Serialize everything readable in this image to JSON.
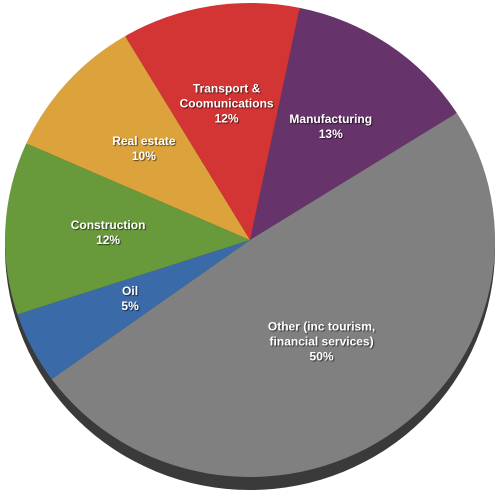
{
  "chart_data": {
    "type": "pie",
    "categories": [
      "Manufacturing",
      "Other (inc tourism, financial services)",
      "Oil",
      "Construction",
      "Real estate",
      "Transport & Coomunications"
    ],
    "values": [
      13,
      50,
      5,
      12,
      10,
      12
    ],
    "value_labels": [
      "13%",
      "50%",
      "5%",
      "12%",
      "10%",
      "12%"
    ],
    "colors": [
      "#66336a",
      "#808080",
      "#3a6aa8",
      "#68993a",
      "#dca23c",
      "#d33434"
    ]
  }
}
